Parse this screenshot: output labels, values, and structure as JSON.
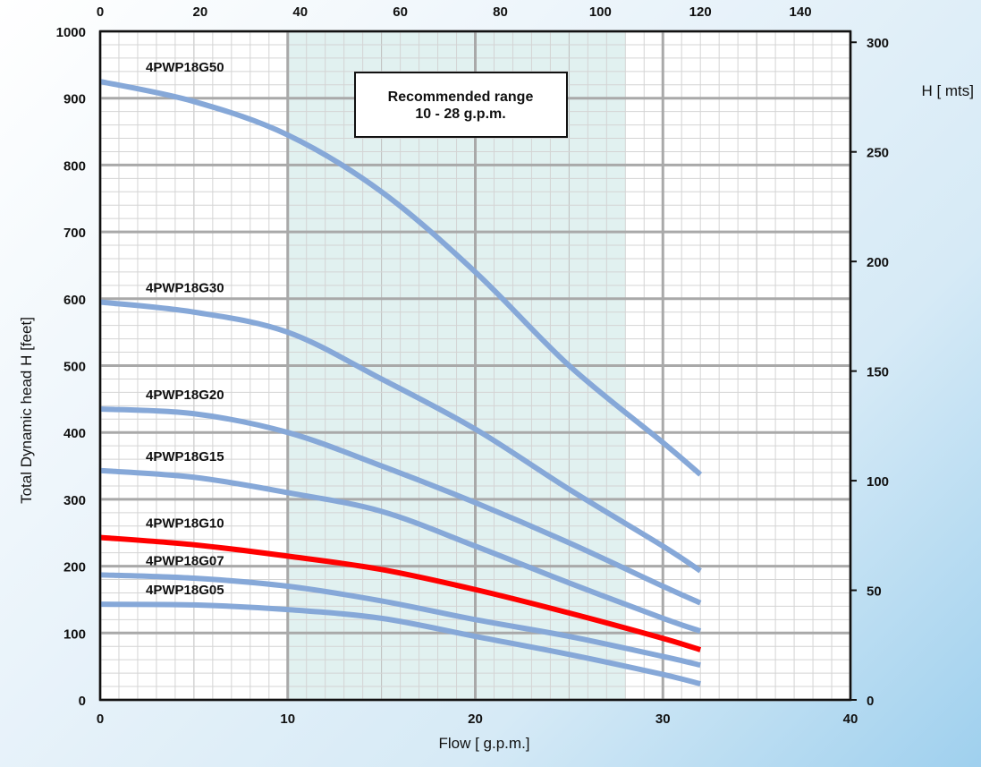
{
  "chart_data": {
    "type": "line",
    "xlabel": "Flow [ g.p.m.]",
    "ylabel": "Total Dynamic head H [feet]",
    "y2label": "H [ mts]",
    "xlim": [
      0,
      40
    ],
    "ylim": [
      0,
      1000
    ],
    "x2lim": [
      0,
      150
    ],
    "y2lim": [
      0,
      305
    ],
    "x_ticks": [
      0,
      10,
      20,
      30,
      40
    ],
    "y_ticks": [
      0,
      100,
      200,
      300,
      400,
      500,
      600,
      700,
      800,
      900,
      1000
    ],
    "x2_ticks": [
      0,
      20,
      40,
      60,
      80,
      100,
      120,
      140
    ],
    "y2_ticks": [
      0,
      50,
      100,
      150,
      200,
      250,
      300
    ],
    "recommended_range": {
      "from": 10,
      "to": 28,
      "line1": "Recommended range",
      "line2": "10 - 28 g.p.m."
    },
    "grid": true,
    "series": [
      {
        "name": "4PWP18G50",
        "color": "#86a8d8",
        "x": [
          0,
          5,
          10,
          15,
          20,
          25,
          30,
          32
        ],
        "values": [
          925,
          895,
          845,
          760,
          640,
          500,
          385,
          337
        ]
      },
      {
        "name": "4PWP18G30",
        "color": "#86a8d8",
        "x": [
          0,
          5,
          10,
          15,
          20,
          25,
          30,
          32
        ],
        "values": [
          595,
          580,
          550,
          480,
          405,
          315,
          230,
          193
        ]
      },
      {
        "name": "4PWP18G20",
        "color": "#86a8d8",
        "x": [
          0,
          5,
          10,
          15,
          20,
          25,
          30,
          32
        ],
        "values": [
          435,
          428,
          400,
          350,
          295,
          235,
          170,
          145
        ]
      },
      {
        "name": "4PWP18G15",
        "color": "#86a8d8",
        "x": [
          0,
          5,
          10,
          15,
          20,
          25,
          30,
          32
        ],
        "values": [
          343,
          333,
          310,
          282,
          230,
          175,
          122,
          103
        ]
      },
      {
        "name": "4PWP18G10",
        "color": "#ff0000",
        "x": [
          0,
          5,
          10,
          15,
          20,
          25,
          30,
          32
        ],
        "values": [
          243,
          232,
          215,
          195,
          165,
          130,
          92,
          75
        ]
      },
      {
        "name": "4PWP18G07",
        "color": "#86a8d8",
        "x": [
          0,
          5,
          10,
          15,
          20,
          25,
          30,
          32
        ],
        "values": [
          187,
          182,
          170,
          148,
          120,
          95,
          65,
          52
        ]
      },
      {
        "name": "4PWP18G05",
        "color": "#86a8d8",
        "x": [
          0,
          5,
          10,
          15,
          20,
          25,
          30,
          32
        ],
        "values": [
          143,
          142,
          135,
          122,
          95,
          68,
          38,
          24
        ]
      }
    ]
  }
}
